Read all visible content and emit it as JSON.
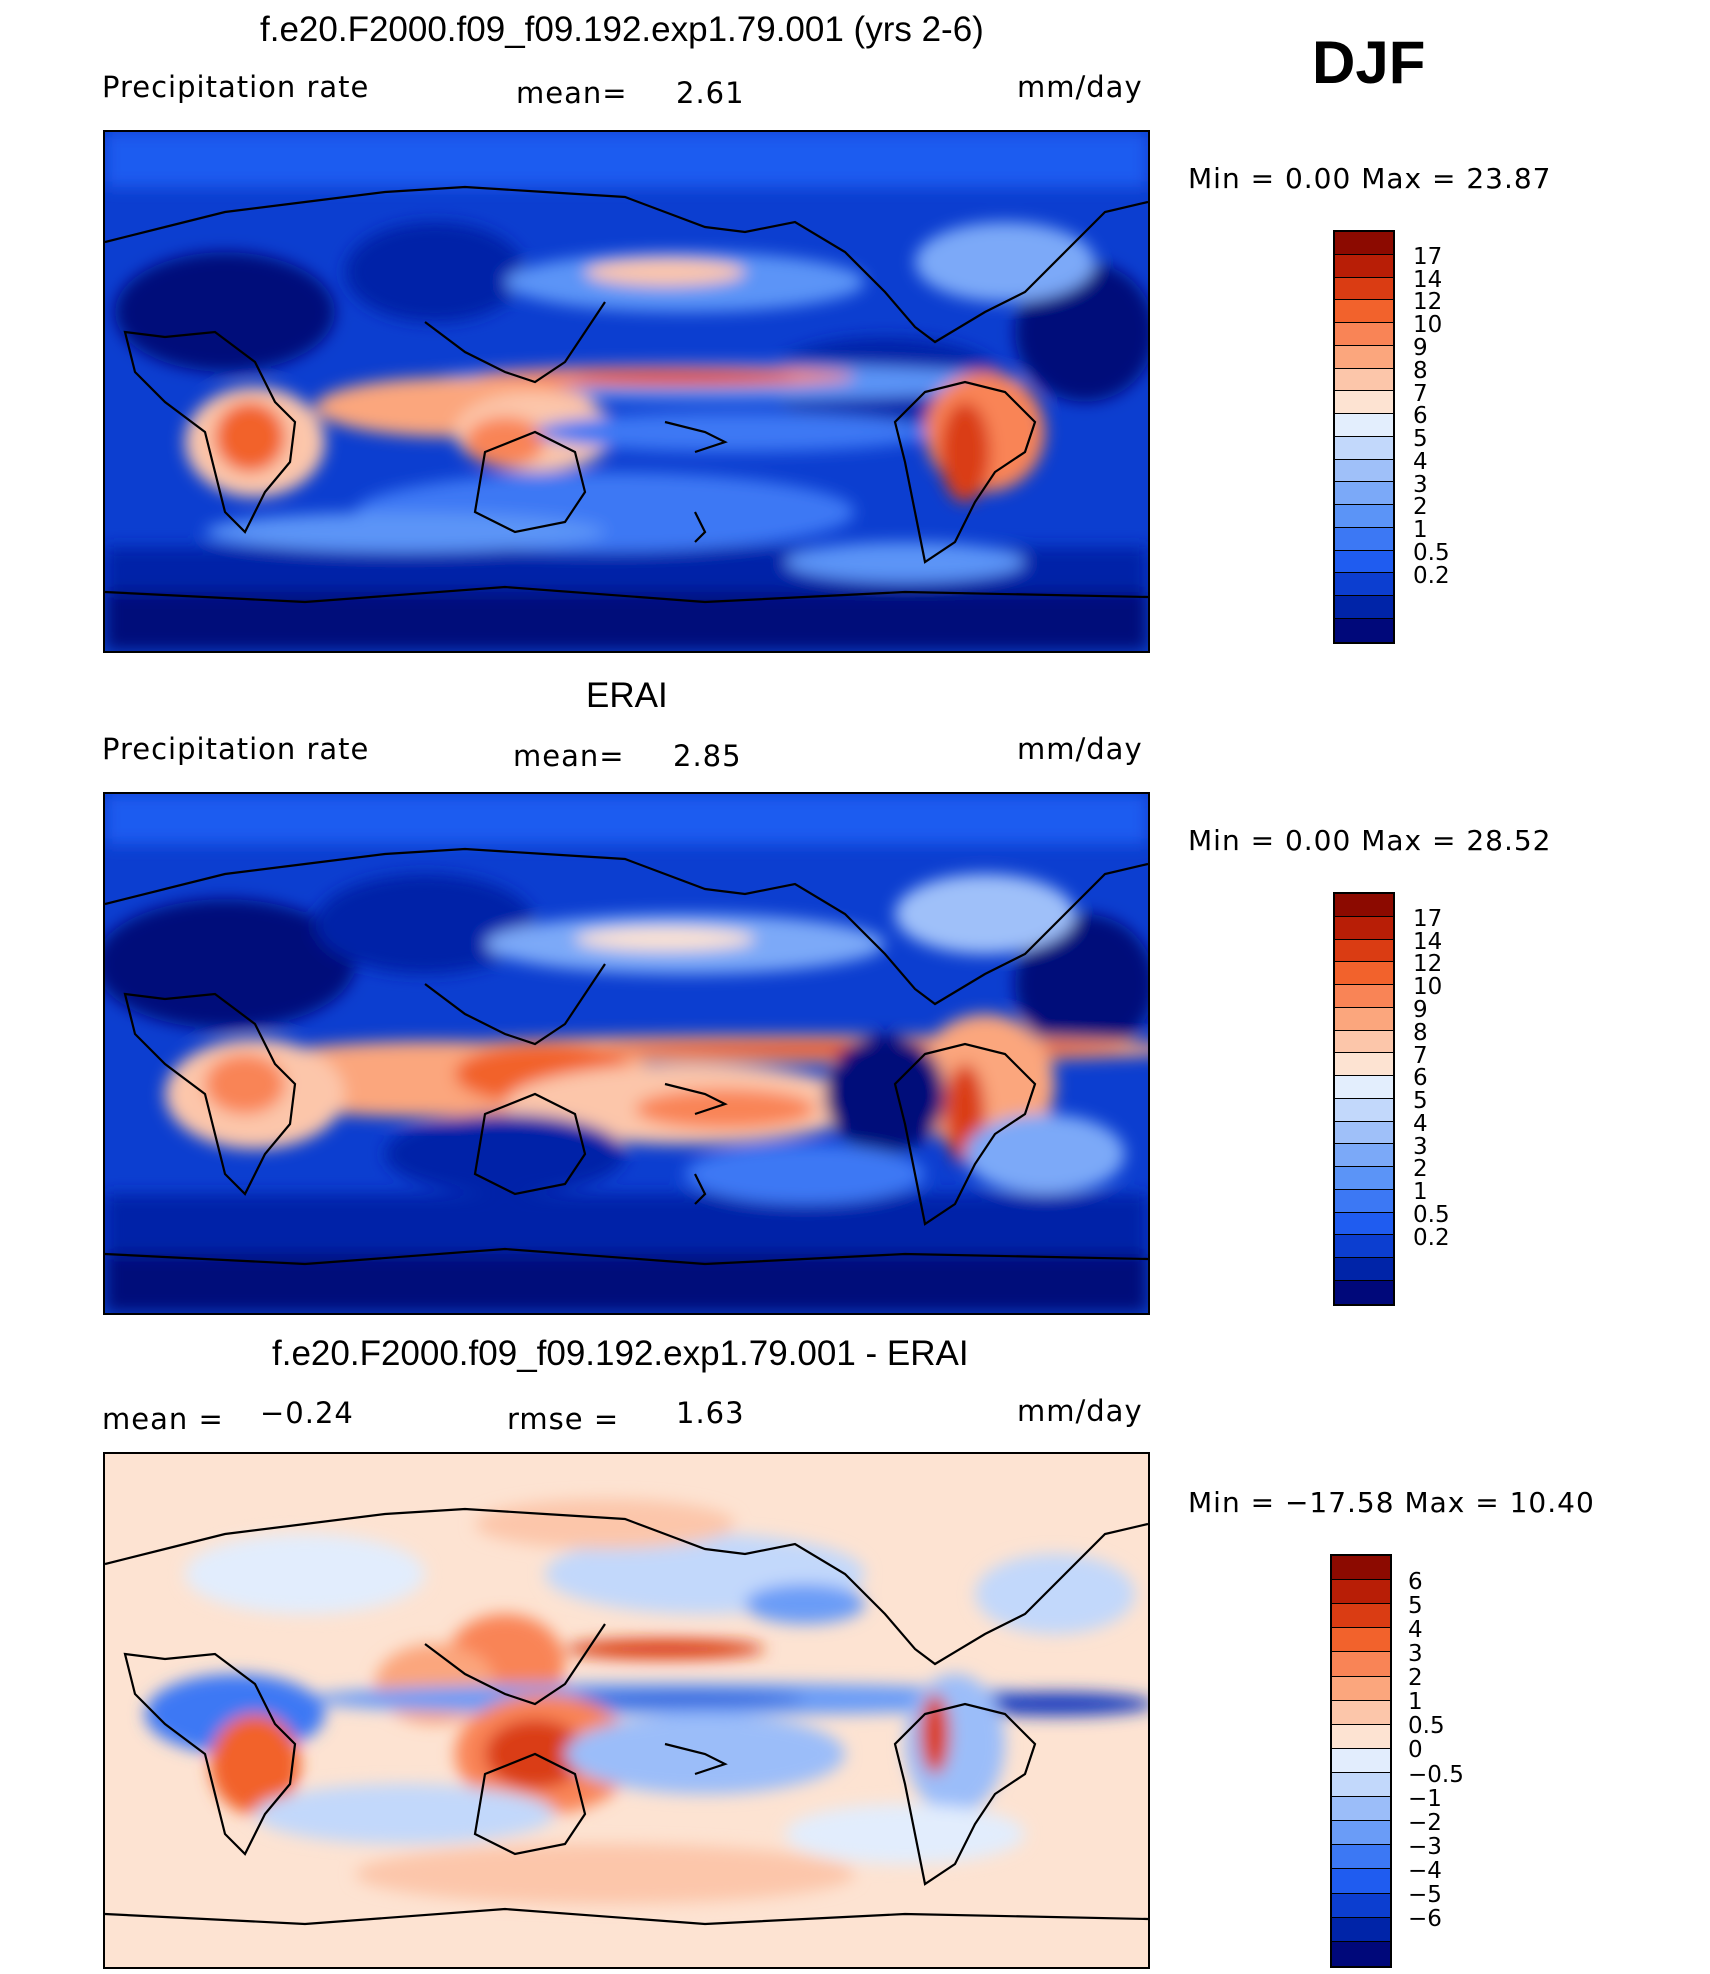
{
  "season": "DJF",
  "colors": {
    "precip": [
      "#00087a",
      "#0024a8",
      "#0c3ed0",
      "#1f5cf0",
      "#3c78f4",
      "#5b94f7",
      "#7ba9f8",
      "#9fc0f9",
      "#c2d8fb",
      "#e3eefd",
      "#fde3d2",
      "#fcc6aa",
      "#fba67d",
      "#f98456",
      "#f2622c",
      "#da3c13",
      "#b81e06",
      "#8c0a00"
    ],
    "diff": [
      "#00087a",
      "#0024a8",
      "#0c3ed0",
      "#1f5cf0",
      "#3c78f4",
      "#6a9cf7",
      "#9bbdf9",
      "#c2d8fb",
      "#e2edfd",
      "#fde3d2",
      "#fcc6aa",
      "#fba67d",
      "#f98456",
      "#f2622c",
      "#da3c13",
      "#b81e06",
      "#8c0a00"
    ]
  },
  "panels": [
    {
      "title": "f.e20.F2000.f09_f09.192.exp1.79.001 (yrs 2-6)",
      "left_label": "Precipitation  rate",
      "center_label": "mean=",
      "center_value": "2.61",
      "units": "mm/day",
      "minmax": "Min  =     0.00  Max  =    23.87",
      "colorbar_labels": [
        "17",
        "14",
        "12",
        "10",
        "9",
        "8",
        "7",
        "6",
        "5",
        "4",
        "3",
        "2",
        "1",
        "0.5",
        "0.2"
      ],
      "colorscale": "precip"
    },
    {
      "title": "ERAI",
      "left_label": "Precipitation  rate",
      "center_label": "mean=",
      "center_value": "2.85",
      "units": "mm/day",
      "minmax": "Min  =     0.00  Max  =    28.52",
      "colorbar_labels": [
        "17",
        "14",
        "12",
        "10",
        "9",
        "8",
        "7",
        "6",
        "5",
        "4",
        "3",
        "2",
        "1",
        "0.5",
        "0.2"
      ],
      "colorscale": "precip"
    },
    {
      "title": "f.e20.F2000.f09_f09.192.exp1.79.001 - ERAI",
      "left_label": "mean  =",
      "left_value": "−0.24",
      "center_label": "rmse  =",
      "center_value": "1.63",
      "units": "mm/day",
      "minmax": "Min  = −17.58  Max  =    10.40",
      "colorbar_labels": [
        "6",
        "5",
        "4",
        "3",
        "2",
        "1",
        "0.5",
        "0",
        "−0.5",
        "−1",
        "−2",
        "−3",
        "−4",
        "−5",
        "−6"
      ],
      "colorscale": "diff"
    }
  ]
}
